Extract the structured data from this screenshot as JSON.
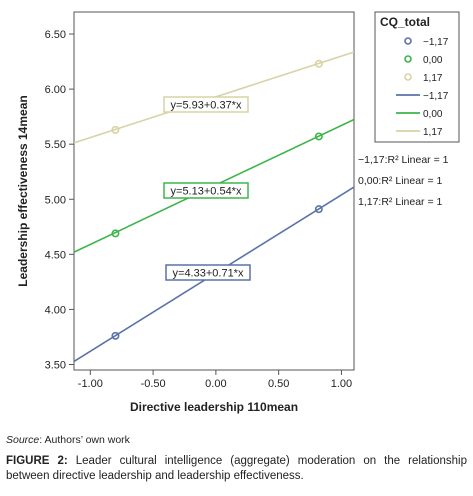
{
  "chart_data": {
    "type": "scatter",
    "title": "",
    "xlabel": "Directive leadership 110mean",
    "ylabel": "Leadership effectiveness 14mean",
    "xlim": [
      -1.13,
      1.1
    ],
    "ylim": [
      3.45,
      6.7
    ],
    "x_ticks": [
      "-1.00",
      "-0.50",
      "0.00",
      "0.50",
      "1.00"
    ],
    "y_ticks": [
      "3.50",
      "4.00",
      "4.50",
      "5.00",
      "5.50",
      "6.00",
      "6.50"
    ],
    "legend": {
      "title": "CQ_total",
      "placement": "top-right outside",
      "marker_entries": [
        "−1,17",
        "0,00",
        "1,17"
      ],
      "line_entries": [
        "−1,17",
        "0,00",
        "1,17"
      ]
    },
    "series": [
      {
        "name": "−1,17",
        "color": "#5a72a8",
        "points": [
          {
            "x": -0.8,
            "y": 3.76
          },
          {
            "x": 0.82,
            "y": 4.91
          }
        ],
        "fit": {
          "intercept": 4.33,
          "slope": 0.71
        },
        "equation": "y=4.33+0.71*x",
        "r2_label": "−1,17:R² Linear = 1"
      },
      {
        "name": "0,00",
        "color": "#3db54a",
        "points": [
          {
            "x": -0.8,
            "y": 4.69
          },
          {
            "x": 0.82,
            "y": 5.57
          }
        ],
        "fit": {
          "intercept": 5.13,
          "slope": 0.54
        },
        "equation": "y=5.13+0.54*x",
        "r2_label": "0,00:R² Linear = 1"
      },
      {
        "name": "1,17",
        "color": "#d8d3a6",
        "points": [
          {
            "x": -0.8,
            "y": 5.63
          },
          {
            "x": 0.82,
            "y": 6.23
          }
        ],
        "fit": {
          "intercept": 5.93,
          "slope": 0.37
        },
        "equation": "y=5.93+0.37*x",
        "r2_label": "1,17:R² Linear = 1"
      }
    ]
  },
  "source": {
    "label": "Source",
    "text": ": Authors’ own work"
  },
  "caption": {
    "label": "FIGURE 2:",
    "text": "Leader cultural intelligence (aggregate) moderation on the relationship between directive leadership and leadership effectiveness."
  }
}
